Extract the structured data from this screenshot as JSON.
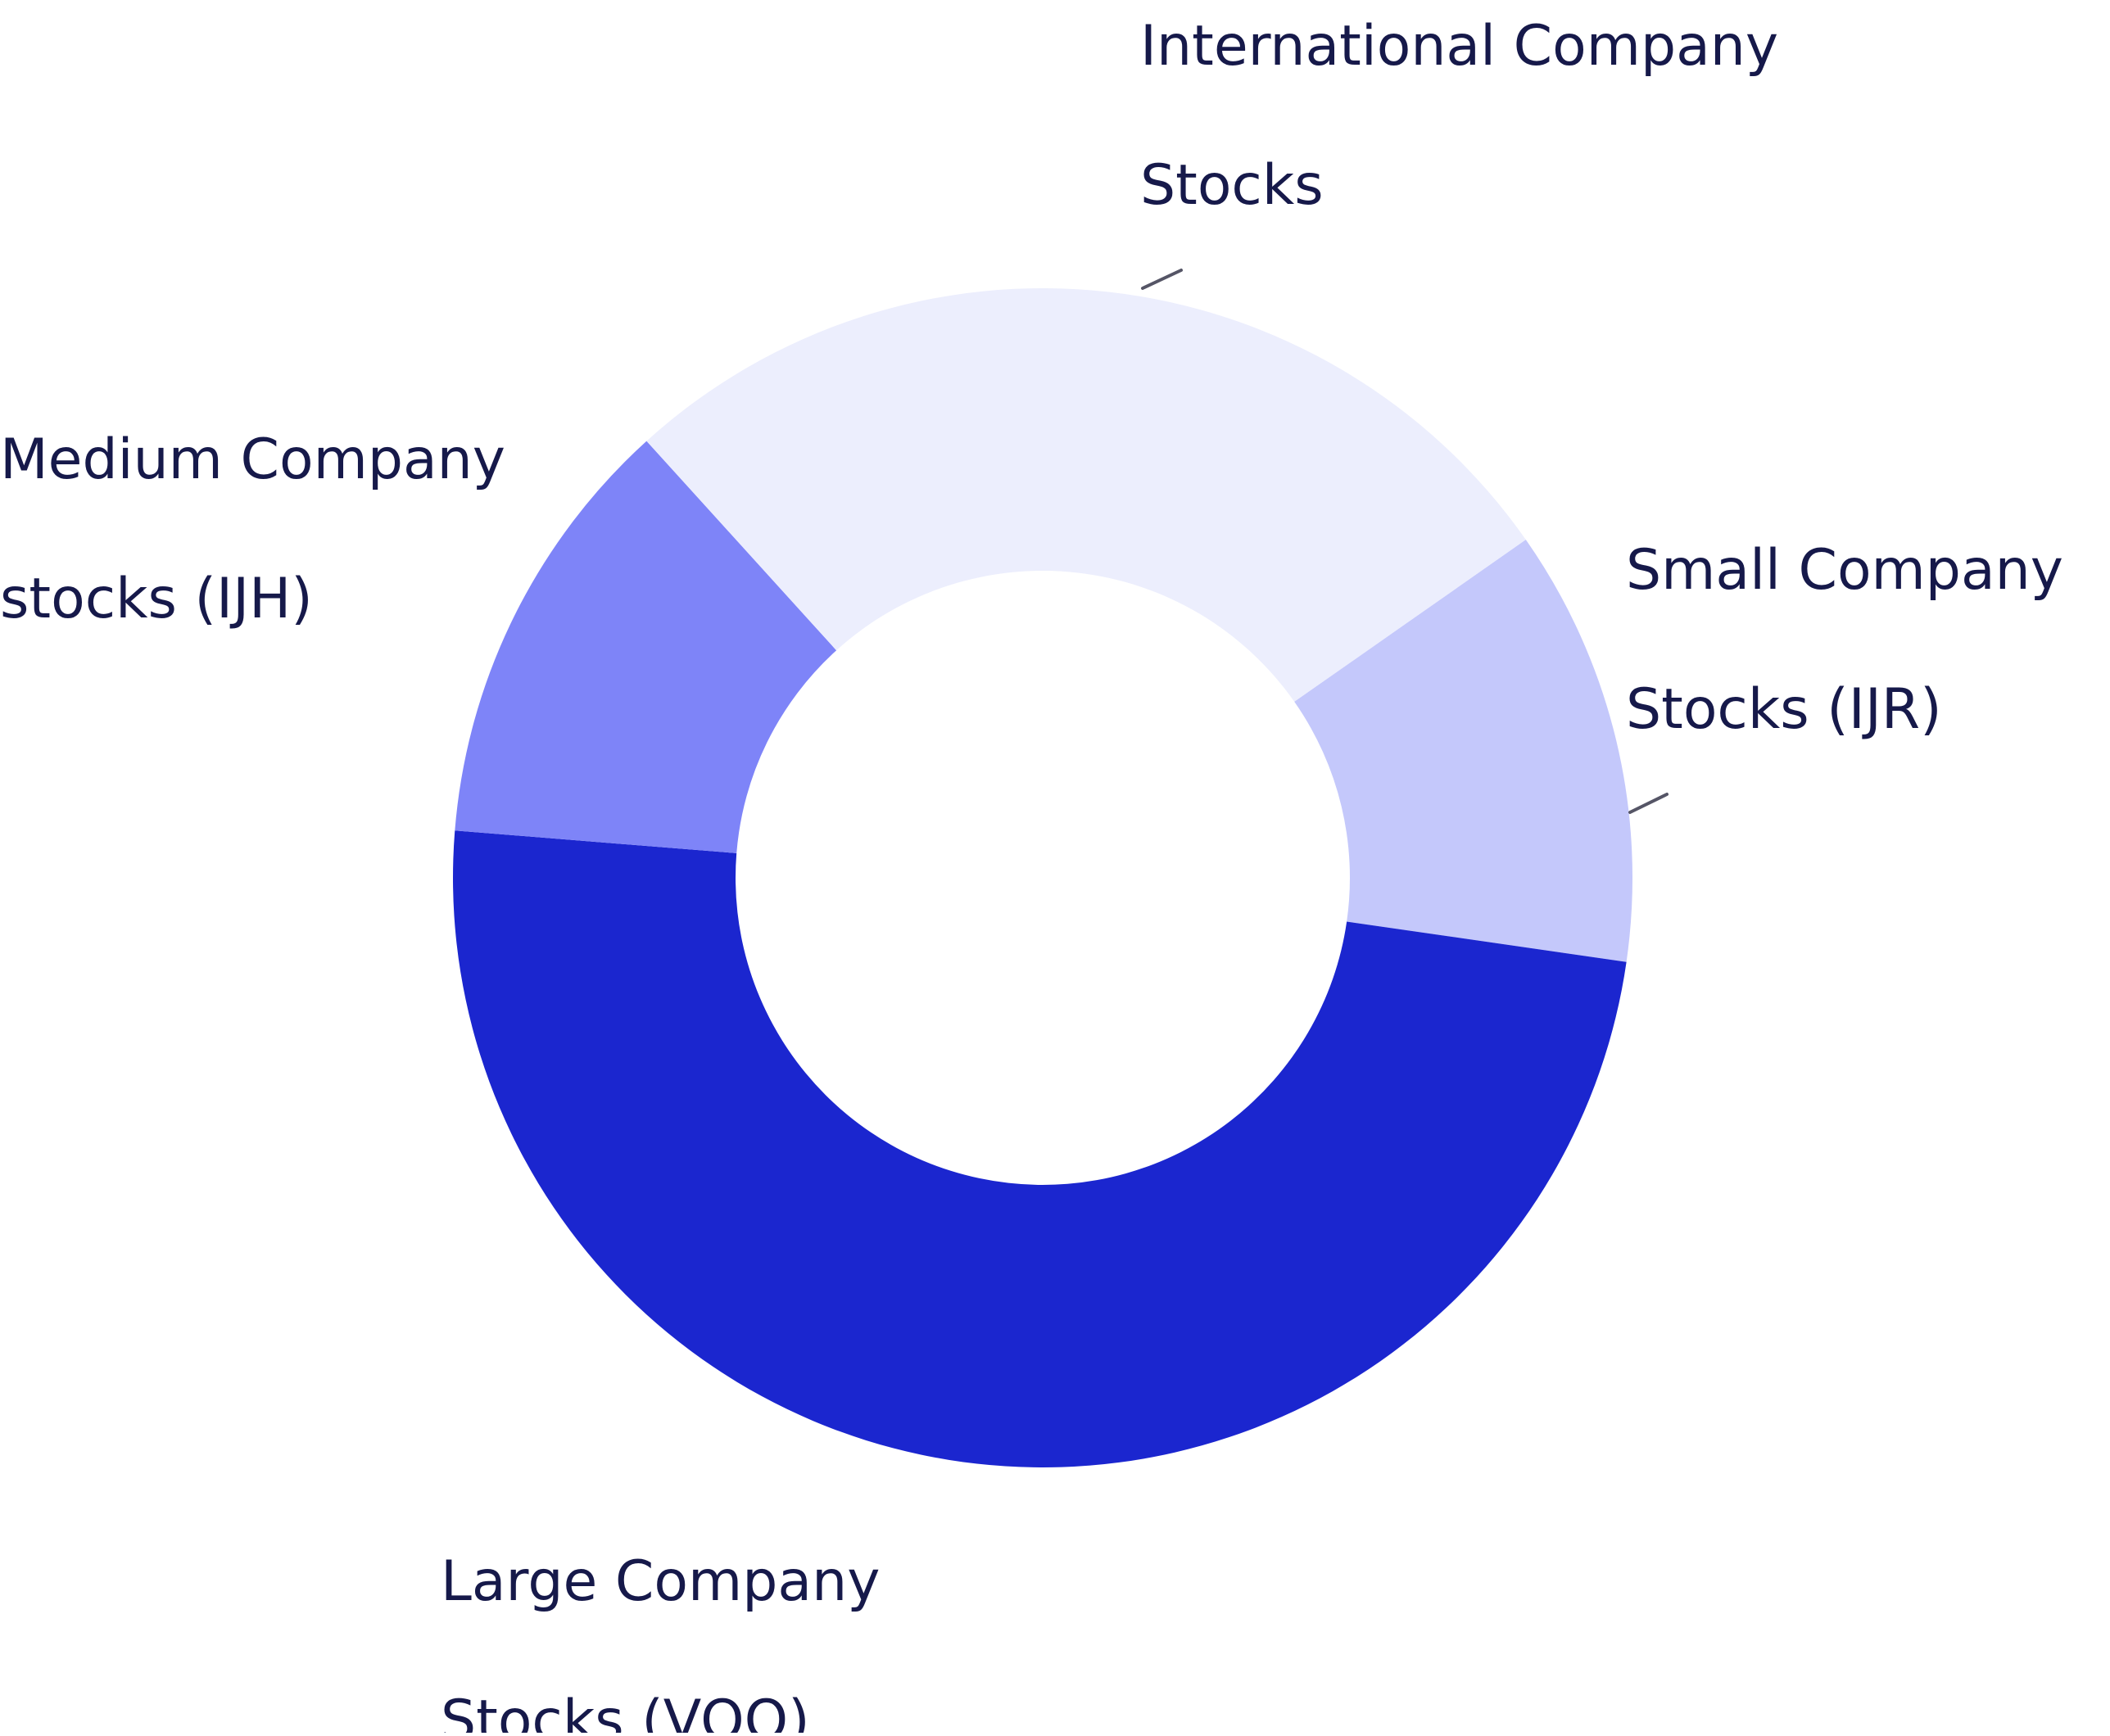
{
  "chart_data": {
    "type": "pie",
    "variant": "donut",
    "title": "",
    "legend": "none",
    "slices": [
      {
        "label": [
          "Small Company",
          "Stocks (IJR)"
        ],
        "value": 12,
        "color": "#c4c8fb"
      },
      {
        "label": [
          "Large Company",
          "Stocks (VOO)"
        ],
        "value": 49,
        "color": "#1b26cf"
      },
      {
        "label": [
          "Medium Company",
          "stocks (IJH)"
        ],
        "value": 12,
        "color": "#7e84f8"
      },
      {
        "label": [
          "International Company",
          "Stocks"
        ],
        "value": 27,
        "color": "#eceefd"
      }
    ]
  }
}
